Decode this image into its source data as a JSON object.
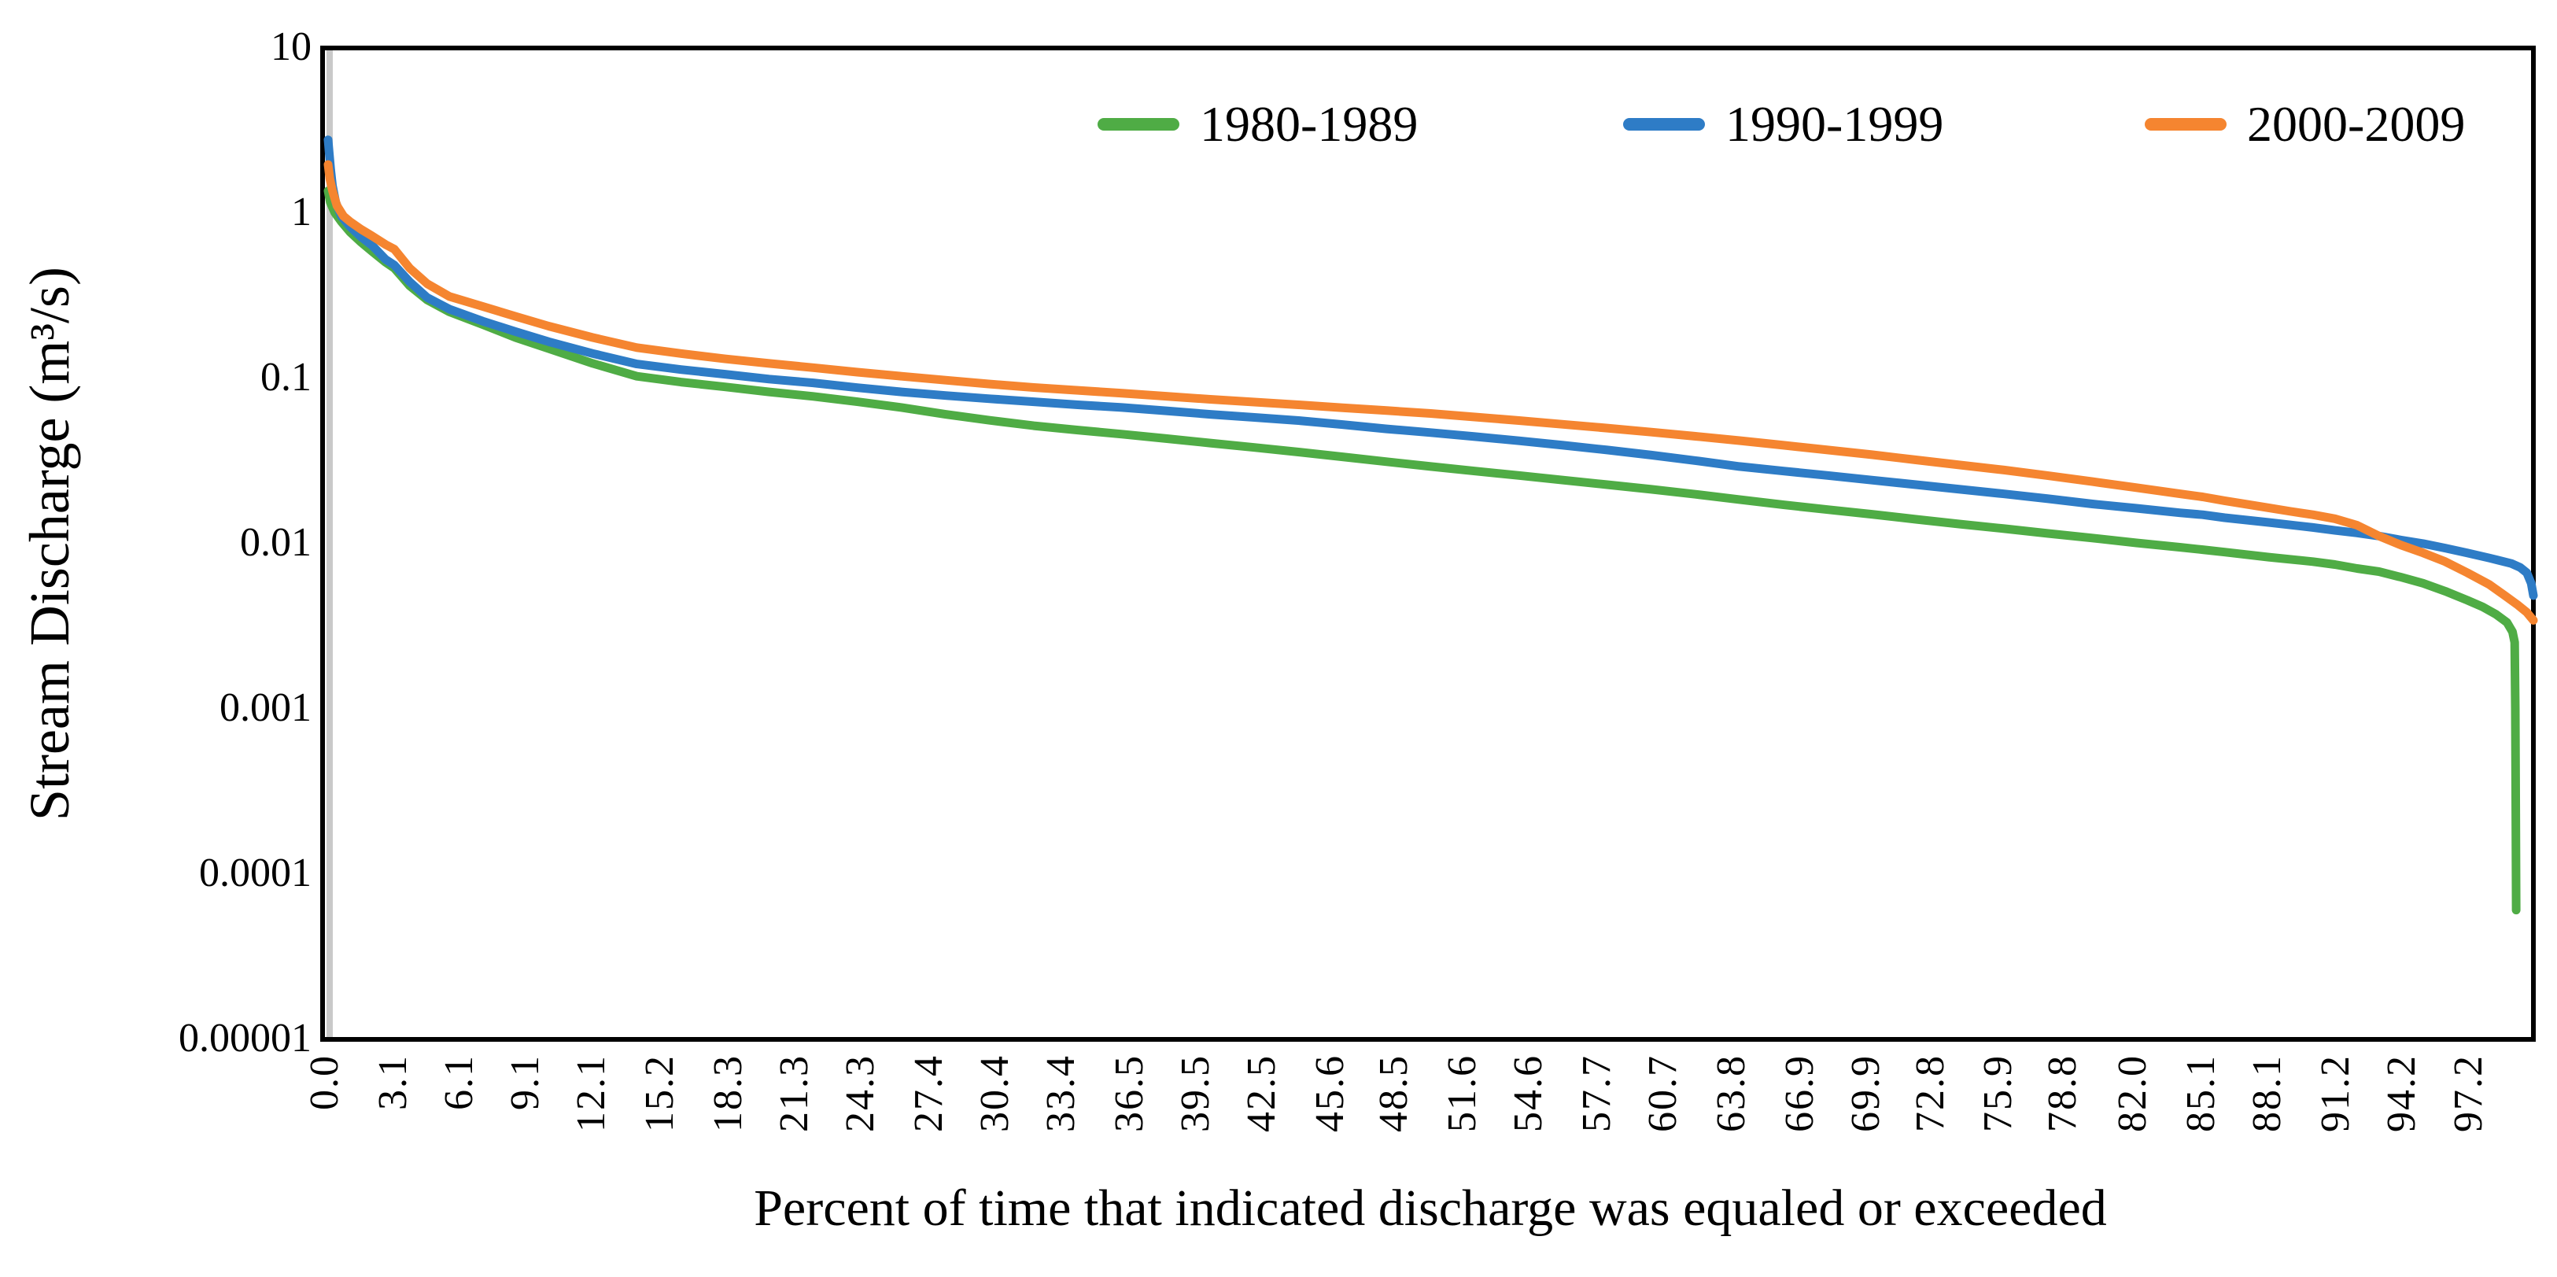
{
  "chart_data": {
    "type": "line",
    "title": "",
    "xlabel": "Percent of time that indicated discharge was equaled or exceeded",
    "ylabel": "Stream Discharge (m³/s)",
    "grid": "off",
    "legend_position": "top-right-inside",
    "x_axis": {
      "scale": "linear",
      "range": [
        0,
        100
      ],
      "tick_labels": [
        "0.0",
        "3.1",
        "6.1",
        "9.1",
        "12.1",
        "15.2",
        "18.3",
        "21.3",
        "24.3",
        "27.4",
        "30.4",
        "33.4",
        "36.5",
        "39.5",
        "42.5",
        "45.6",
        "48.5",
        "51.6",
        "54.6",
        "57.7",
        "60.7",
        "63.8",
        "66.9",
        "69.9",
        "72.8",
        "75.9",
        "78.8",
        "82.0",
        "85.1",
        "88.1",
        "91.2",
        "94.2",
        "97.2"
      ]
    },
    "y_axis": {
      "scale": "log",
      "range": [
        1e-05,
        10
      ],
      "tick_labels": [
        "10",
        "1",
        "0.1",
        "0.01",
        "0.001",
        "0.0001",
        "0.00001"
      ]
    },
    "series": [
      {
        "name": "1980-1989",
        "color": "#4fac45",
        "points": [
          [
            0,
            1.35
          ],
          [
            0.1,
            1.15
          ],
          [
            0.3,
            1.0
          ],
          [
            0.6,
            0.88
          ],
          [
            1,
            0.76
          ],
          [
            1.5,
            0.66
          ],
          [
            2,
            0.58
          ],
          [
            2.6,
            0.5
          ],
          [
            3,
            0.46
          ],
          [
            3.7,
            0.36
          ],
          [
            4.5,
            0.295
          ],
          [
            5.5,
            0.25
          ],
          [
            7,
            0.21
          ],
          [
            8.5,
            0.175
          ],
          [
            10,
            0.15
          ],
          [
            12,
            0.122
          ],
          [
            14,
            0.102
          ],
          [
            16,
            0.094
          ],
          [
            18,
            0.088
          ],
          [
            20,
            0.082
          ],
          [
            22,
            0.077
          ],
          [
            24,
            0.0715
          ],
          [
            26,
            0.066
          ],
          [
            28,
            0.06
          ],
          [
            30,
            0.0552
          ],
          [
            32,
            0.0512
          ],
          [
            34,
            0.0482
          ],
          [
            36,
            0.0455
          ],
          [
            38,
            0.0428
          ],
          [
            40,
            0.0402
          ],
          [
            42,
            0.0378
          ],
          [
            44,
            0.0355
          ],
          [
            46,
            0.0332
          ],
          [
            48,
            0.031
          ],
          [
            50,
            0.029
          ],
          [
            52,
            0.0272
          ],
          [
            54,
            0.0256
          ],
          [
            56,
            0.024
          ],
          [
            58,
            0.0225
          ],
          [
            60,
            0.0211
          ],
          [
            62,
            0.0197
          ],
          [
            64,
            0.0183
          ],
          [
            66,
            0.017
          ],
          [
            68,
            0.0159
          ],
          [
            70,
            0.0149
          ],
          [
            72,
            0.0139
          ],
          [
            74,
            0.013
          ],
          [
            76,
            0.0122
          ],
          [
            78,
            0.0114
          ],
          [
            80,
            0.0107
          ],
          [
            82,
            0.01
          ],
          [
            84,
            0.0094
          ],
          [
            85,
            0.0091
          ],
          [
            86,
            0.0088
          ],
          [
            88,
            0.0082
          ],
          [
            90,
            0.0077
          ],
          [
            91,
            0.0074
          ],
          [
            92,
            0.007
          ],
          [
            93,
            0.0067
          ],
          [
            94,
            0.0062
          ],
          [
            95,
            0.0057
          ],
          [
            96,
            0.0051
          ],
          [
            97,
            0.0045
          ],
          [
            97.7,
            0.0041
          ],
          [
            98.3,
            0.0037
          ],
          [
            98.8,
            0.0033
          ],
          [
            99.05,
            0.0029
          ],
          [
            99.15,
            0.0025
          ],
          [
            99.18,
            0.001
          ],
          [
            99.2,
            0.00023
          ],
          [
            99.22,
            6e-05
          ]
        ]
      },
      {
        "name": "1990-1999",
        "color": "#2e7cc6",
        "points": [
          [
            0,
            2.75
          ],
          [
            0.05,
            2.3
          ],
          [
            0.12,
            1.8
          ],
          [
            0.2,
            1.45
          ],
          [
            0.35,
            1.15
          ],
          [
            0.6,
            0.95
          ],
          [
            1,
            0.82
          ],
          [
            1.5,
            0.71
          ],
          [
            2,
            0.63
          ],
          [
            2.6,
            0.52
          ],
          [
            3,
            0.48
          ],
          [
            3.7,
            0.38
          ],
          [
            4.5,
            0.305
          ],
          [
            5.5,
            0.26
          ],
          [
            7,
            0.22
          ],
          [
            8.5,
            0.19
          ],
          [
            10,
            0.165
          ],
          [
            12,
            0.14
          ],
          [
            14,
            0.121
          ],
          [
            16,
            0.112
          ],
          [
            18,
            0.105
          ],
          [
            20,
            0.098
          ],
          [
            22,
            0.093
          ],
          [
            24,
            0.087
          ],
          [
            26,
            0.082
          ],
          [
            28,
            0.078
          ],
          [
            30,
            0.0745
          ],
          [
            32,
            0.0715
          ],
          [
            34,
            0.0685
          ],
          [
            36,
            0.066
          ],
          [
            38,
            0.063
          ],
          [
            40,
            0.06
          ],
          [
            42,
            0.0575
          ],
          [
            44,
            0.055
          ],
          [
            46,
            0.052
          ],
          [
            48,
            0.049
          ],
          [
            50,
            0.0465
          ],
          [
            52,
            0.044
          ],
          [
            54,
            0.0415
          ],
          [
            56,
            0.039
          ],
          [
            58,
            0.0365
          ],
          [
            60,
            0.034
          ],
          [
            62,
            0.0315
          ],
          [
            64,
            0.029
          ],
          [
            66,
            0.0272
          ],
          [
            68,
            0.0256
          ],
          [
            70,
            0.024
          ],
          [
            72,
            0.0225
          ],
          [
            74,
            0.0211
          ],
          [
            76,
            0.0198
          ],
          [
            78,
            0.0185
          ],
          [
            80,
            0.0172
          ],
          [
            82,
            0.0162
          ],
          [
            84,
            0.0152
          ],
          [
            85,
            0.0148
          ],
          [
            86,
            0.0142
          ],
          [
            88,
            0.0133
          ],
          [
            90,
            0.0124
          ],
          [
            91,
            0.0119
          ],
          [
            92,
            0.0115
          ],
          [
            93,
            0.011
          ],
          [
            94,
            0.0104
          ],
          [
            95,
            0.0099
          ],
          [
            96,
            0.0093
          ],
          [
            97,
            0.0087
          ],
          [
            98,
            0.0081
          ],
          [
            99,
            0.0075
          ],
          [
            99.4,
            0.0071
          ],
          [
            99.7,
            0.0066
          ],
          [
            99.9,
            0.0057
          ],
          [
            100,
            0.0048
          ]
        ]
      },
      {
        "name": "2000-2009",
        "color": "#f58530",
        "points": [
          [
            0,
            1.95
          ],
          [
            0.08,
            1.6
          ],
          [
            0.2,
            1.35
          ],
          [
            0.4,
            1.1
          ],
          [
            0.7,
            0.95
          ],
          [
            1,
            0.88
          ],
          [
            1.5,
            0.79
          ],
          [
            2,
            0.72
          ],
          [
            2.6,
            0.64
          ],
          [
            3,
            0.6
          ],
          [
            3.7,
            0.46
          ],
          [
            4.5,
            0.37
          ],
          [
            5.5,
            0.31
          ],
          [
            7,
            0.27
          ],
          [
            8.5,
            0.235
          ],
          [
            10,
            0.205
          ],
          [
            12,
            0.175
          ],
          [
            14,
            0.152
          ],
          [
            16,
            0.14
          ],
          [
            18,
            0.13
          ],
          [
            20,
            0.122
          ],
          [
            22,
            0.115
          ],
          [
            24,
            0.108
          ],
          [
            26,
            0.102
          ],
          [
            28,
            0.0965
          ],
          [
            30,
            0.0915
          ],
          [
            32,
            0.0872
          ],
          [
            34,
            0.0838
          ],
          [
            36,
            0.0805
          ],
          [
            38,
            0.0772
          ],
          [
            40,
            0.074
          ],
          [
            42,
            0.0712
          ],
          [
            44,
            0.0685
          ],
          [
            46,
            0.0658
          ],
          [
            48,
            0.0632
          ],
          [
            50,
            0.0607
          ],
          [
            52,
            0.0578
          ],
          [
            54,
            0.055
          ],
          [
            56,
            0.0522
          ],
          [
            58,
            0.0495
          ],
          [
            60,
            0.0468
          ],
          [
            62,
            0.0442
          ],
          [
            64,
            0.0416
          ],
          [
            66,
            0.039
          ],
          [
            68,
            0.0365
          ],
          [
            70,
            0.0342
          ],
          [
            72,
            0.0318
          ],
          [
            74,
            0.0296
          ],
          [
            76,
            0.0276
          ],
          [
            78,
            0.0255
          ],
          [
            80,
            0.0235
          ],
          [
            82,
            0.0216
          ],
          [
            84,
            0.0198
          ],
          [
            85,
            0.019
          ],
          [
            86,
            0.018
          ],
          [
            88,
            0.0163
          ],
          [
            89,
            0.0155
          ],
          [
            90,
            0.0148
          ],
          [
            91,
            0.014
          ],
          [
            92,
            0.0128
          ],
          [
            93,
            0.011
          ],
          [
            94,
            0.0097
          ],
          [
            95,
            0.0087
          ],
          [
            96,
            0.0077
          ],
          [
            97,
            0.0066
          ],
          [
            98,
            0.0056
          ],
          [
            98.7,
            0.0048
          ],
          [
            99.3,
            0.0042
          ],
          [
            99.7,
            0.0038
          ],
          [
            100,
            0.0034
          ]
        ]
      }
    ]
  }
}
